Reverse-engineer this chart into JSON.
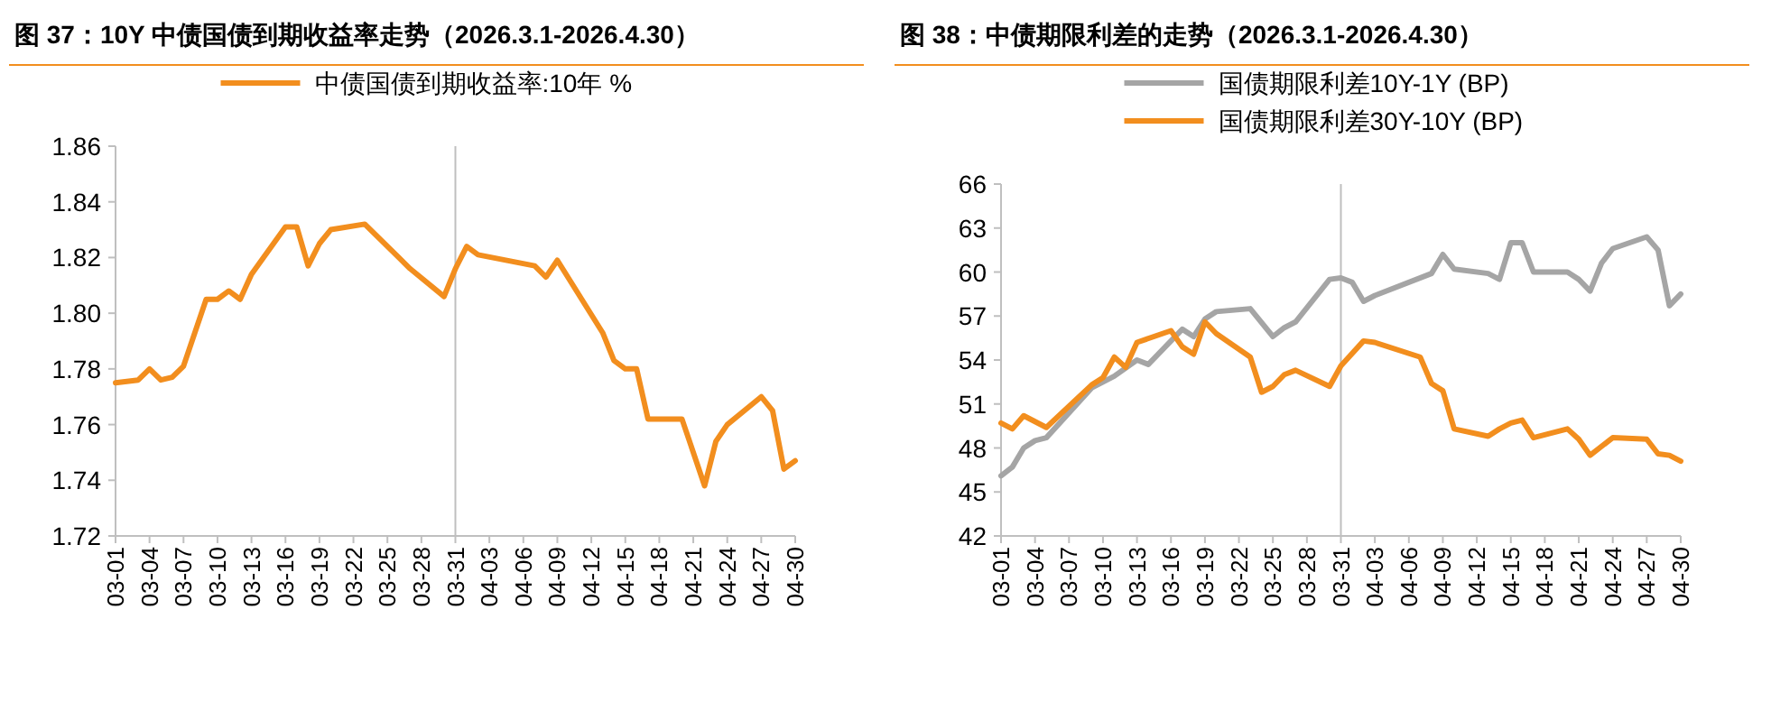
{
  "chart_data": [
    {
      "type": "line",
      "title": "图 37：10Y 中债国债到期收益率走势（2026.3.1-2026.4.30）",
      "legend": "top",
      "xlim": [
        "--03-01",
        "--04-30"
      ],
      "xticks": [
        {
          "value": "--03-01",
          "label": "03-01"
        },
        {
          "value": "--03-04",
          "label": "03-04"
        },
        {
          "value": "--03-07",
          "label": "03-07"
        },
        {
          "value": "--03-10",
          "label": "03-10"
        },
        {
          "value": "--03-13",
          "label": "03-13"
        },
        {
          "value": "--03-16",
          "label": "03-16"
        },
        {
          "value": "--03-19",
          "label": "03-19"
        },
        {
          "value": "--03-22",
          "label": "03-22"
        },
        {
          "value": "--03-25",
          "label": "03-25"
        },
        {
          "value": "--03-28",
          "label": "03-28"
        },
        {
          "value": "--03-31",
          "label": "03-31"
        },
        {
          "value": "--04-03",
          "label": "04-03"
        },
        {
          "value": "--04-06",
          "label": "04-06"
        },
        {
          "value": "--04-09",
          "label": "04-09"
        },
        {
          "value": "--04-12",
          "label": "04-12"
        },
        {
          "value": "--04-15",
          "label": "04-15"
        },
        {
          "value": "--04-18",
          "label": "04-18"
        },
        {
          "value": "--04-21",
          "label": "04-21"
        },
        {
          "value": "--04-24",
          "label": "04-24"
        },
        {
          "value": "--04-27",
          "label": "04-27"
        },
        {
          "value": "--04-30",
          "label": "04-30"
        }
      ],
      "ylim": [
        1.72,
        1.86
      ],
      "yticks": [
        {
          "value": 1.72,
          "label": "1.72"
        },
        {
          "value": 1.74,
          "label": "1.74"
        },
        {
          "value": 1.76,
          "label": "1.76"
        },
        {
          "value": 1.78,
          "label": "1.78"
        },
        {
          "value": 1.8,
          "label": "1.80"
        },
        {
          "value": 1.82,
          "label": "1.82"
        },
        {
          "value": 1.84,
          "label": "1.84"
        },
        {
          "value": 1.86,
          "label": "1.86"
        }
      ],
      "ref_lines": [
        {
          "axis": "x",
          "value": "--03-31",
          "color": "#bfbfbf"
        }
      ],
      "series": [
        {
          "name": "中债国债到期收益率:10年 %",
          "color": "#f28e1e",
          "x": [
            "--03-01",
            "--03-03",
            "--03-04",
            "--03-05",
            "--03-06",
            "--03-07",
            "--03-09",
            "--03-10",
            "--03-11",
            "--03-12",
            "--03-13",
            "--03-16",
            "--03-17",
            "--03-18",
            "--03-19",
            "--03-20",
            "--03-23",
            "--03-26",
            "--03-27",
            "--03-30",
            "--03-31",
            "--04-01",
            "--04-02",
            "--04-07",
            "--04-08",
            "--04-09",
            "--04-13",
            "--04-14",
            "--04-15",
            "--04-16",
            "--04-17",
            "--04-20",
            "--04-22",
            "--04-23",
            "--04-24",
            "--04-27",
            "--04-28",
            "--04-29",
            "--04-30"
          ],
          "values": [
            1.775,
            1.776,
            1.78,
            1.776,
            1.777,
            1.781,
            1.805,
            1.805,
            1.808,
            1.805,
            1.814,
            1.831,
            1.831,
            1.817,
            1.825,
            1.83,
            1.832,
            1.82,
            1.816,
            1.806,
            1.816,
            1.824,
            1.821,
            1.817,
            1.813,
            1.819,
            1.793,
            1.783,
            1.78,
            1.78,
            1.762,
            1.762,
            1.738,
            1.754,
            1.76,
            1.77,
            1.765,
            1.744,
            1.747
          ]
        }
      ]
    },
    {
      "type": "line",
      "title": "图 38：中债期限利差的走势（2026.3.1-2026.4.30）",
      "legend": "top",
      "xlim": [
        "--03-01",
        "--04-30"
      ],
      "xticks": [
        {
          "value": "--03-01",
          "label": "03-01"
        },
        {
          "value": "--03-04",
          "label": "03-04"
        },
        {
          "value": "--03-07",
          "label": "03-07"
        },
        {
          "value": "--03-10",
          "label": "03-10"
        },
        {
          "value": "--03-13",
          "label": "03-13"
        },
        {
          "value": "--03-16",
          "label": "03-16"
        },
        {
          "value": "--03-19",
          "label": "03-19"
        },
        {
          "value": "--03-22",
          "label": "03-22"
        },
        {
          "value": "--03-25",
          "label": "03-25"
        },
        {
          "value": "--03-28",
          "label": "03-28"
        },
        {
          "value": "--03-31",
          "label": "03-31"
        },
        {
          "value": "--04-03",
          "label": "04-03"
        },
        {
          "value": "--04-06",
          "label": "04-06"
        },
        {
          "value": "--04-09",
          "label": "04-09"
        },
        {
          "value": "--04-12",
          "label": "04-12"
        },
        {
          "value": "--04-15",
          "label": "04-15"
        },
        {
          "value": "--04-18",
          "label": "04-18"
        },
        {
          "value": "--04-21",
          "label": "04-21"
        },
        {
          "value": "--04-24",
          "label": "04-24"
        },
        {
          "value": "--04-27",
          "label": "04-27"
        },
        {
          "value": "--04-30",
          "label": "04-30"
        }
      ],
      "ylim": [
        42,
        66
      ],
      "yticks": [
        42,
        45,
        48,
        51,
        54,
        57,
        60,
        63,
        66
      ],
      "ref_lines": [
        {
          "axis": "x",
          "value": "--03-31",
          "color": "#bfbfbf"
        }
      ],
      "series": [
        {
          "name": "国债期限利差10Y-1Y (BP)",
          "color": "#a5a5a5",
          "x": [
            "--03-01",
            "--03-02",
            "--03-03",
            "--03-04",
            "--03-05",
            "--03-09",
            "--03-11",
            "--03-13",
            "--03-14",
            "--03-17",
            "--03-18",
            "--03-19",
            "--03-20",
            "--03-23",
            "--03-25",
            "--03-26",
            "--03-27",
            "--03-30",
            "--03-31",
            "--04-01",
            "--04-02",
            "--04-03",
            "--04-08",
            "--04-09",
            "--04-10",
            "--04-13",
            "--04-14",
            "--04-15",
            "--04-16",
            "--04-17",
            "--04-20",
            "--04-21",
            "--04-22",
            "--04-23",
            "--04-24",
            "--04-27",
            "--04-28",
            "--04-29",
            "--04-30"
          ],
          "values": [
            46.1,
            46.7,
            48.0,
            48.5,
            48.7,
            52.1,
            52.9,
            54.0,
            53.7,
            56.1,
            55.6,
            56.8,
            57.3,
            57.5,
            55.6,
            56.2,
            56.6,
            59.5,
            59.6,
            59.3,
            58.0,
            58.4,
            59.9,
            61.2,
            60.2,
            59.9,
            59.5,
            62.0,
            62.0,
            60.0,
            60.0,
            59.5,
            58.7,
            60.6,
            61.6,
            62.4,
            61.5,
            57.7,
            58.5
          ]
        },
        {
          "name": "国债期限利差30Y-10Y (BP)",
          "color": "#f28e1e",
          "x": [
            "--03-01",
            "--03-02",
            "--03-03",
            "--03-05",
            "--03-09",
            "--03-10",
            "--03-11",
            "--03-12",
            "--03-13",
            "--03-16",
            "--03-17",
            "--03-18",
            "--03-19",
            "--03-20",
            "--03-23",
            "--03-24",
            "--03-25",
            "--03-26",
            "--03-27",
            "--03-30",
            "--03-31",
            "--04-02",
            "--04-03",
            "--04-07",
            "--04-08",
            "--04-09",
            "--04-10",
            "--04-13",
            "--04-14",
            "--04-15",
            "--04-16",
            "--04-17",
            "--04-20",
            "--04-21",
            "--04-22",
            "--04-24",
            "--04-27",
            "--04-28",
            "--04-29",
            "--04-30"
          ],
          "values": [
            49.7,
            49.3,
            50.2,
            49.4,
            52.3,
            52.8,
            54.2,
            53.5,
            55.2,
            56.0,
            54.9,
            54.4,
            56.6,
            55.8,
            54.2,
            51.8,
            52.2,
            53.0,
            53.3,
            52.2,
            53.6,
            55.3,
            55.2,
            54.2,
            52.4,
            51.9,
            49.3,
            48.8,
            49.3,
            49.7,
            49.9,
            48.7,
            49.3,
            48.6,
            47.5,
            48.7,
            48.6,
            47.6,
            47.5,
            47.1
          ]
        }
      ]
    }
  ]
}
